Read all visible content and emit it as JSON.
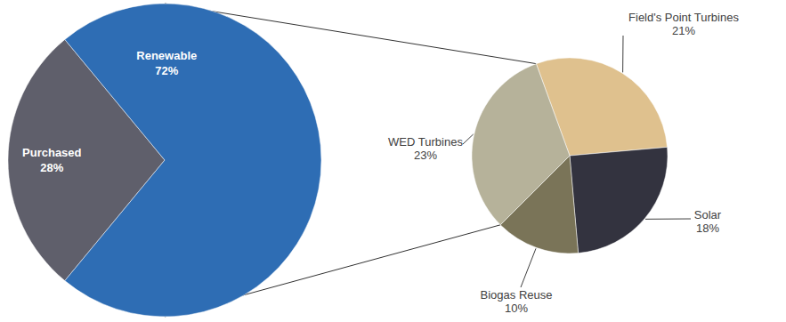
{
  "chart_data": [
    {
      "type": "pie",
      "categories": [
        "Purchased",
        "Renewable"
      ],
      "values": [
        28,
        72
      ],
      "value_labels": [
        "28%",
        "72%"
      ],
      "colors": [
        "#5f5f6b",
        "#2e6db4"
      ],
      "data_labels": true
    },
    {
      "type": "pie",
      "categories": [
        "Field's Point Turbines",
        "Solar",
        "Biogas Reuse",
        "WED Turbines"
      ],
      "values": [
        21,
        18,
        10,
        23
      ],
      "value_labels": [
        "21%",
        "18%",
        "10%",
        "23%"
      ],
      "colors": [
        "#dfc18e",
        "#33333f",
        "#7a7458",
        "#b6b29a"
      ],
      "data_labels": true
    }
  ]
}
